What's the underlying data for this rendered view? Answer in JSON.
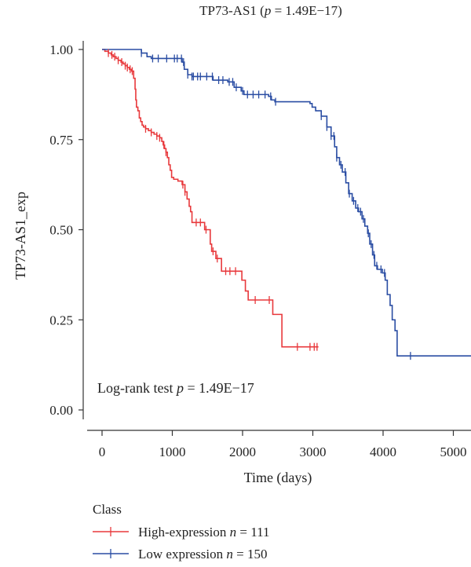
{
  "chart_data": {
    "type": "line",
    "subtype": "kaplan-meier",
    "title_prefix": "TP73-AS1 (",
    "title_p": "p",
    "title_suffix": " = 1.49E−17)",
    "xlabel": "Time (days)",
    "ylabel": "TP73-AS1_exp",
    "xlim": [
      0,
      5000
    ],
    "ylim": [
      0,
      1.0
    ],
    "x_ticks": [
      0,
      1000,
      2000,
      3000,
      4000,
      5000
    ],
    "x_tick_labels": [
      "0",
      "1000",
      "2000",
      "3000",
      "4000",
      "5000"
    ],
    "y_ticks": [
      0,
      0.25,
      0.5,
      0.75,
      1.0
    ],
    "y_tick_labels": [
      "0.00",
      "0.25",
      "0.50",
      "0.75",
      "1.00"
    ],
    "annotation_prefix": "Log-rank test ",
    "annotation_p": "p",
    "annotation_suffix": " = 1.49E−17",
    "legend": {
      "title": "Class",
      "position": "bottom-left"
    },
    "grid": false,
    "series": [
      {
        "name_prefix": "High-expression ",
        "name_n": "n",
        "name_suffix": " = 111",
        "color": "#e8393c",
        "steps": [
          [
            0,
            1.0
          ],
          [
            40,
            0.995
          ],
          [
            90,
            0.99
          ],
          [
            130,
            0.985
          ],
          [
            160,
            0.98
          ],
          [
            200,
            0.975
          ],
          [
            230,
            0.97
          ],
          [
            270,
            0.965
          ],
          [
            300,
            0.96
          ],
          [
            330,
            0.955
          ],
          [
            360,
            0.95
          ],
          [
            390,
            0.945
          ],
          [
            420,
            0.94
          ],
          [
            450,
            0.92
          ],
          [
            470,
            0.89
          ],
          [
            480,
            0.86
          ],
          [
            490,
            0.84
          ],
          [
            510,
            0.83
          ],
          [
            530,
            0.81
          ],
          [
            550,
            0.8
          ],
          [
            570,
            0.79
          ],
          [
            590,
            0.785
          ],
          [
            620,
            0.78
          ],
          [
            660,
            0.775
          ],
          [
            700,
            0.77
          ],
          [
            740,
            0.765
          ],
          [
            780,
            0.76
          ],
          [
            820,
            0.755
          ],
          [
            850,
            0.745
          ],
          [
            870,
            0.735
          ],
          [
            890,
            0.725
          ],
          [
            910,
            0.715
          ],
          [
            930,
            0.7
          ],
          [
            950,
            0.68
          ],
          [
            970,
            0.665
          ],
          [
            990,
            0.645
          ],
          [
            1020,
            0.64
          ],
          [
            1080,
            0.635
          ],
          [
            1140,
            0.625
          ],
          [
            1180,
            0.605
          ],
          [
            1210,
            0.585
          ],
          [
            1240,
            0.565
          ],
          [
            1260,
            0.55
          ],
          [
            1280,
            0.52
          ],
          [
            1460,
            0.5
          ],
          [
            1540,
            0.46
          ],
          [
            1560,
            0.44
          ],
          [
            1620,
            0.42
          ],
          [
            1700,
            0.385
          ],
          [
            1990,
            0.36
          ],
          [
            2040,
            0.33
          ],
          [
            2080,
            0.305
          ],
          [
            2430,
            0.265
          ],
          [
            2560,
            0.175
          ],
          [
            3080,
            0.175
          ]
        ],
        "censor_times": [
          90,
          140,
          180,
          230,
          280,
          330,
          360,
          400,
          430,
          620,
          700,
          780,
          820,
          880,
          910,
          1150,
          1180,
          1340,
          1400,
          1480,
          1580,
          1640,
          1760,
          1820,
          1900,
          2180,
          2380,
          2780,
          2960,
          3020,
          3060
        ]
      },
      {
        "name_prefix": "Low expression ",
        "name_n": "n",
        "name_suffix": " = 150",
        "color": "#2a4da3",
        "steps": [
          [
            0,
            1.0
          ],
          [
            500,
            1.0
          ],
          [
            560,
            0.99
          ],
          [
            640,
            0.98
          ],
          [
            700,
            0.975
          ],
          [
            1140,
            0.965
          ],
          [
            1170,
            0.945
          ],
          [
            1220,
            0.93
          ],
          [
            1280,
            0.925
          ],
          [
            1580,
            0.915
          ],
          [
            1790,
            0.91
          ],
          [
            1880,
            0.895
          ],
          [
            1980,
            0.885
          ],
          [
            2020,
            0.875
          ],
          [
            2370,
            0.87
          ],
          [
            2410,
            0.86
          ],
          [
            2460,
            0.855
          ],
          [
            2960,
            0.85
          ],
          [
            2990,
            0.84
          ],
          [
            3040,
            0.83
          ],
          [
            3120,
            0.815
          ],
          [
            3200,
            0.785
          ],
          [
            3260,
            0.76
          ],
          [
            3310,
            0.73
          ],
          [
            3340,
            0.7
          ],
          [
            3380,
            0.68
          ],
          [
            3420,
            0.66
          ],
          [
            3470,
            0.63
          ],
          [
            3510,
            0.6
          ],
          [
            3560,
            0.58
          ],
          [
            3610,
            0.56
          ],
          [
            3650,
            0.55
          ],
          [
            3700,
            0.53
          ],
          [
            3740,
            0.51
          ],
          [
            3780,
            0.49
          ],
          [
            3810,
            0.46
          ],
          [
            3850,
            0.43
          ],
          [
            3880,
            0.4
          ],
          [
            3920,
            0.39
          ],
          [
            3990,
            0.38
          ],
          [
            4030,
            0.36
          ],
          [
            4060,
            0.32
          ],
          [
            4100,
            0.29
          ],
          [
            4130,
            0.25
          ],
          [
            4170,
            0.22
          ],
          [
            4200,
            0.15
          ],
          [
            5300,
            0.15
          ]
        ],
        "censor_times": [
          560,
          720,
          800,
          920,
          1030,
          1070,
          1130,
          1160,
          1220,
          1280,
          1300,
          1360,
          1400,
          1490,
          1570,
          1660,
          1720,
          1810,
          1860,
          1910,
          2000,
          2070,
          2150,
          2230,
          2320,
          2400,
          2470,
          3120,
          3200,
          3260,
          3300,
          3340,
          3400,
          3460,
          3520,
          3580,
          3640,
          3680,
          3720,
          3790,
          3830,
          3870,
          3910,
          3970,
          4020,
          4390
        ]
      }
    ]
  }
}
